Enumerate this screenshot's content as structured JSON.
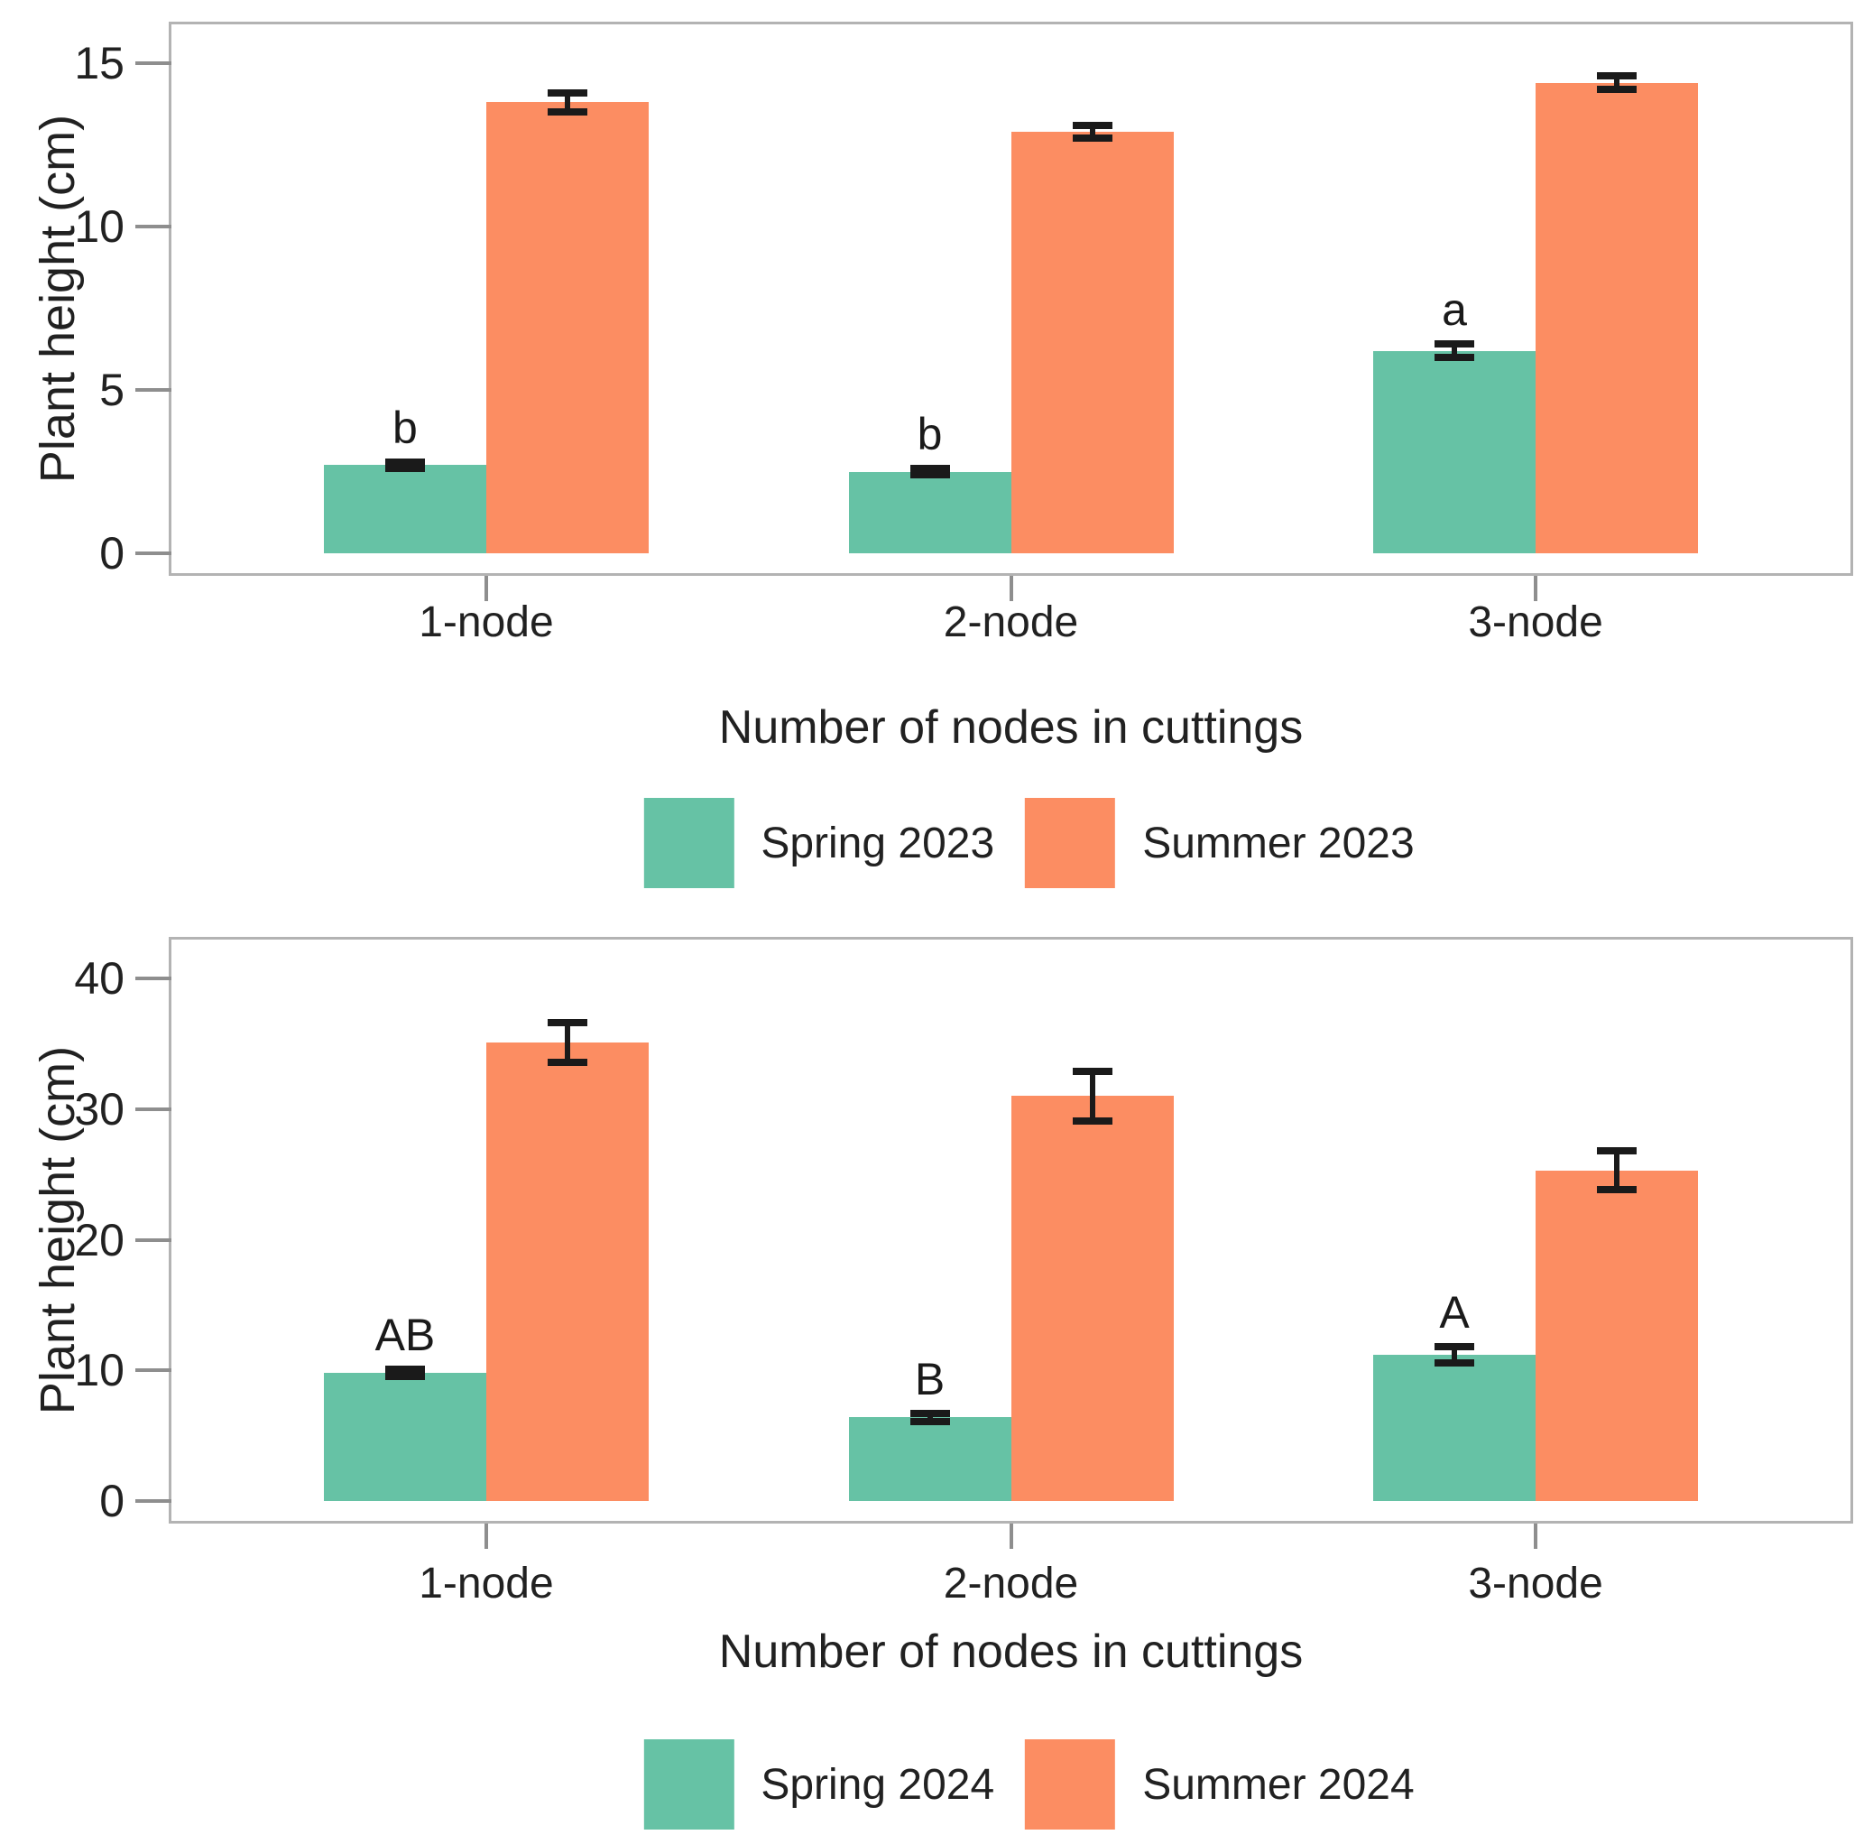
{
  "colors": {
    "spring_green": "#66C2A5",
    "summer_orange": "#FC8D62",
    "error_bar": "#1a1a1a",
    "panel_border": "#b3b3b3",
    "tick_mark": "#8e8e8e",
    "text": "#212121"
  },
  "chart_data": [
    {
      "type": "bar",
      "title": "",
      "xlabel": "Number of nodes in cuttings",
      "ylabel": "Plant height (cm)",
      "categories": [
        "1-node",
        "2-node",
        "3-node"
      ],
      "y_ticks": [
        0,
        5,
        10,
        15
      ],
      "ylim": [
        0,
        16.2
      ],
      "grid": false,
      "legend_position": "bottom",
      "series": [
        {
          "name": "Spring 2023",
          "color": "#66C2A5",
          "values": [
            2.7,
            2.5,
            6.2
          ],
          "errors": [
            0.1,
            0.1,
            0.2
          ],
          "sig_letters": [
            "b",
            "b",
            "a"
          ]
        },
        {
          "name": "Summer 2023",
          "color": "#FC8D62",
          "values": [
            13.8,
            12.9,
            14.4
          ],
          "errors": [
            0.3,
            0.2,
            0.2
          ],
          "sig_letters": [
            "",
            "",
            ""
          ]
        }
      ]
    },
    {
      "type": "bar",
      "title": "",
      "xlabel": "Number of nodes in cuttings",
      "ylabel": "Plant height (cm)",
      "categories": [
        "1-node",
        "2-node",
        "3-node"
      ],
      "y_ticks": [
        0,
        10,
        20,
        30,
        40
      ],
      "ylim": [
        0,
        43
      ],
      "grid": false,
      "legend_position": "bottom",
      "series": [
        {
          "name": "Spring 2024",
          "color": "#66C2A5",
          "values": [
            9.8,
            6.4,
            11.2
          ],
          "errors": [
            0.3,
            0.3,
            0.6
          ],
          "sig_letters": [
            "AB",
            "B",
            "A"
          ]
        },
        {
          "name": "Summer 2024",
          "color": "#FC8D62",
          "values": [
            35.1,
            31.0,
            25.3
          ],
          "errors": [
            1.5,
            1.9,
            1.5
          ],
          "sig_letters": [
            "",
            "",
            ""
          ]
        }
      ]
    }
  ]
}
